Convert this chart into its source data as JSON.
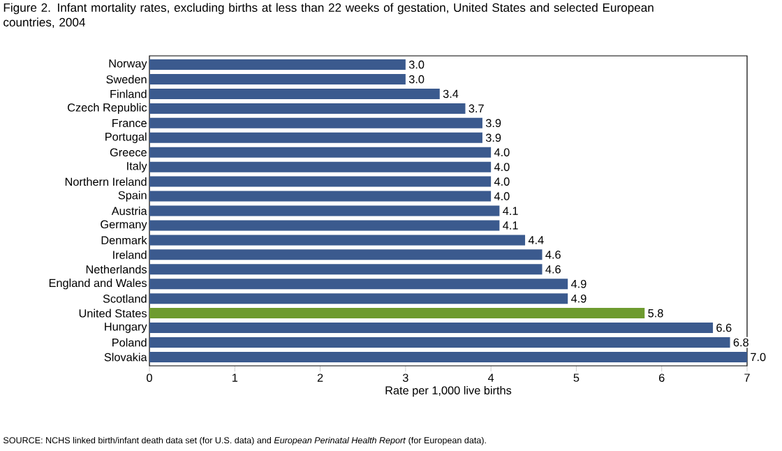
{
  "chart_data": {
    "type": "bar",
    "orientation": "horizontal",
    "title": "Figure 2. Infant mortality rates, excluding births at less than 22 weeks of gestation, United States and selected European countries, 2004",
    "categories": [
      "Norway",
      "Sweden",
      "Finland",
      "Czech Republic",
      "France",
      "Portugal",
      "Greece",
      "Italy",
      "Northern Ireland",
      "Spain",
      "Austria",
      "Germany",
      "Denmark",
      "Ireland",
      "Netherlands",
      "England and Wales",
      "Scotland",
      "United States",
      "Hungary",
      "Poland",
      "Slovakia"
    ],
    "values": [
      3.0,
      3.0,
      3.4,
      3.7,
      3.9,
      3.9,
      4.0,
      4.0,
      4.0,
      4.0,
      4.1,
      4.1,
      4.4,
      4.6,
      4.6,
      4.9,
      4.9,
      5.8,
      6.6,
      6.8,
      7.0
    ],
    "value_labels": [
      "3.0",
      "3.0",
      "3.4",
      "3.7",
      "3.9",
      "3.9",
      "4.0",
      "4.0",
      "4.0",
      "4.0",
      "4.1",
      "4.1",
      "4.4",
      "4.6",
      "4.6",
      "4.9",
      "4.9",
      "5.8",
      "6.6",
      "6.8",
      "7.0"
    ],
    "colors": [
      "#3b5a8e",
      "#3b5a8e",
      "#3b5a8e",
      "#3b5a8e",
      "#3b5a8e",
      "#3b5a8e",
      "#3b5a8e",
      "#3b5a8e",
      "#3b5a8e",
      "#3b5a8e",
      "#3b5a8e",
      "#3b5a8e",
      "#3b5a8e",
      "#3b5a8e",
      "#3b5a8e",
      "#3b5a8e",
      "#3b5a8e",
      "#6e9b2f",
      "#3b5a8e",
      "#3b5a8e",
      "#3b5a8e"
    ],
    "xlabel": "Rate per 1,000 live births",
    "xlim": [
      0,
      7
    ],
    "xticks": [
      0,
      1,
      2,
      3,
      4,
      5,
      6,
      7
    ],
    "annotations": [
      "SOURCE: NCHS linked birth/infant death data set (for U.S. data) and *European Perinatal Health Report* (for European data)."
    ]
  }
}
